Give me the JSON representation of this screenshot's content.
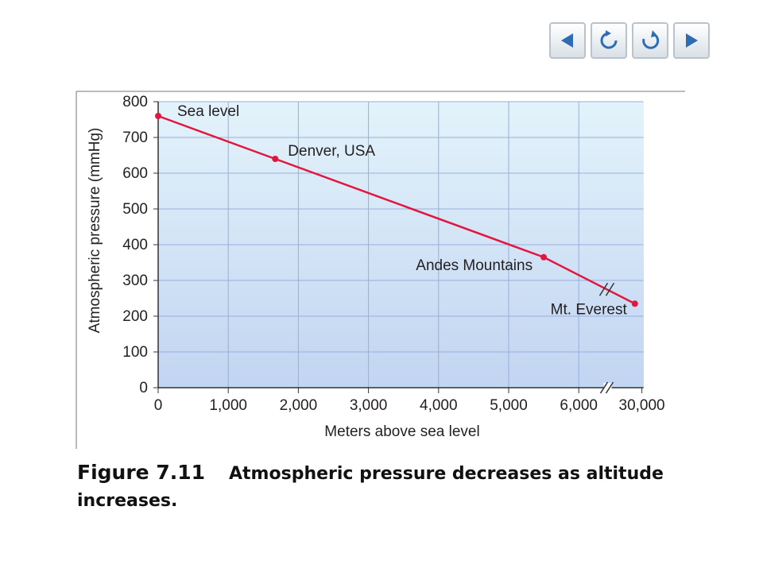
{
  "chart_data": {
    "type": "line",
    "x_label": "Meters above sea level",
    "y_label": "Atmospheric pressure (mmHg)",
    "x": [
      0,
      1670,
      5500,
      29900
    ],
    "series": [
      {
        "name": "Atmospheric pressure",
        "color": "#e3173e",
        "values": [
          760,
          640,
          365,
          235
        ],
        "point_labels": [
          "Sea level",
          "Denver, USA",
          "Andes Mountains",
          "Mt. Everest"
        ]
      }
    ],
    "xlim": [
      0,
      30000
    ],
    "xbreak": [
      6400,
      29500
    ],
    "xticks": [
      0,
      {
        "value": 1000,
        "label": "1,000"
      },
      {
        "value": 2000,
        "label": "2,000"
      },
      {
        "value": 3000,
        "label": "3,000"
      },
      {
        "value": 4000,
        "label": "4,000"
      },
      {
        "value": 5000,
        "label": "5,000"
      },
      {
        "value": 6000,
        "label": "6,000"
      },
      {
        "value": 30000,
        "label": "30,000"
      }
    ],
    "ylim": [
      0,
      800
    ],
    "yticks": [
      0,
      100,
      200,
      300,
      400,
      500,
      600,
      700,
      800
    ],
    "grid": true
  },
  "caption": {
    "label": "Figure 7.11",
    "text": "Atmospheric pressure decreases as altitude increases."
  }
}
